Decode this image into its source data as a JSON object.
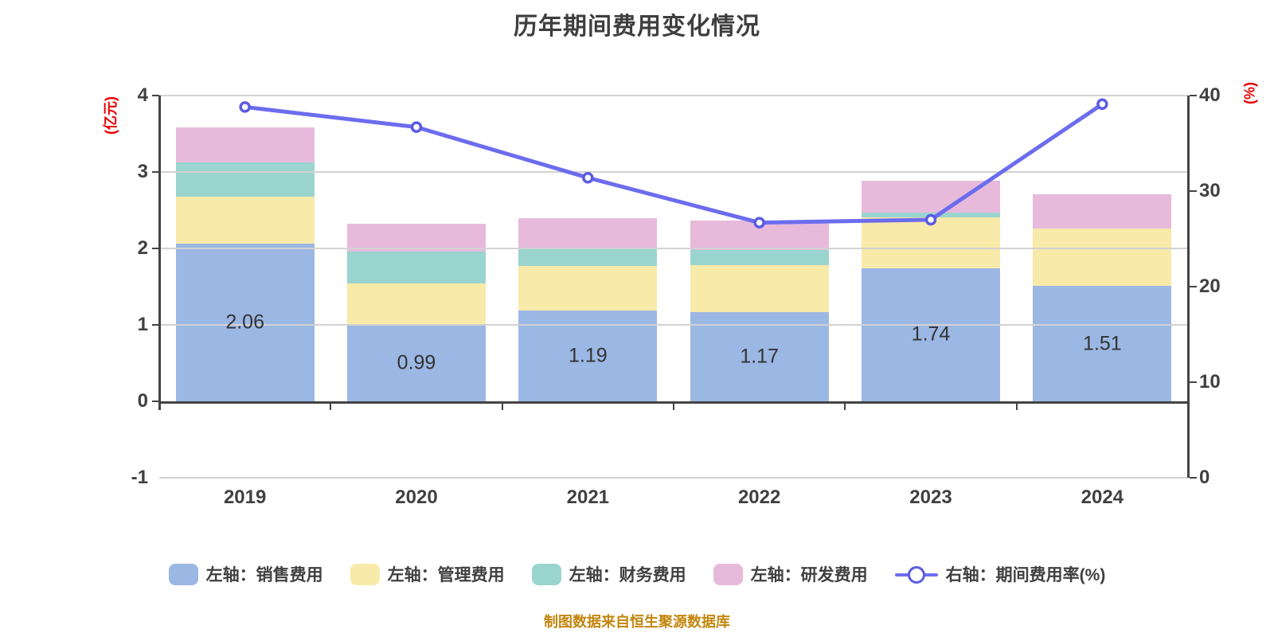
{
  "title": "历年期间费用变化情况",
  "footer": "制图数据来自恒生聚源数据库",
  "colors": {
    "sales": "#9BB7E3",
    "admin": "#F8EAA9",
    "finance": "#9AD4CE",
    "rd": "#E7BADC",
    "line": "#6C6CEF",
    "line_marker_stroke": "#5B5BE2",
    "line_marker_fill": "#FFFFFF",
    "axis_name": "#E60202",
    "footer_text": "#C2860E"
  },
  "left_axis": {
    "name": "(亿元)",
    "min": -1,
    "max": 4,
    "ticks": [
      4,
      3,
      2,
      1,
      0,
      -1
    ]
  },
  "right_axis": {
    "name": "(%)",
    "min": 0,
    "max": 40,
    "ticks": [
      40,
      30,
      20,
      10,
      0
    ]
  },
  "legend": [
    {
      "id": "sales",
      "label": "左轴：销售费用",
      "type": "bar",
      "color_key": "sales"
    },
    {
      "id": "admin",
      "label": "左轴：管理费用",
      "type": "bar",
      "color_key": "admin"
    },
    {
      "id": "finance",
      "label": "左轴：财务费用",
      "type": "bar",
      "color_key": "finance"
    },
    {
      "id": "rd",
      "label": "左轴：研发费用",
      "type": "bar",
      "color_key": "rd"
    },
    {
      "id": "rate",
      "label": "右轴：期间费用率(%)",
      "type": "line",
      "color_key": "line"
    }
  ],
  "chart_data": {
    "type": "bar+line",
    "title": "历年期间费用变化情况",
    "categories": [
      "2019",
      "2020",
      "2021",
      "2022",
      "2023",
      "2024"
    ],
    "left_ylim": [
      -1,
      4
    ],
    "right_ylim": [
      0,
      40
    ],
    "ylabel_left": "(亿元)",
    "ylabel_right": "(%)",
    "grid": true,
    "legend_position": "bottom",
    "series": [
      {
        "id": "sales",
        "name": "左轴：销售费用",
        "type": "bar",
        "stack": true,
        "axis": "left",
        "values": [
          2.06,
          0.99,
          1.19,
          1.17,
          1.74,
          1.51
        ],
        "data_labels": [
          "2.06",
          "0.99",
          "1.19",
          "1.17",
          "1.74",
          "1.51"
        ]
      },
      {
        "id": "admin",
        "name": "左轴：管理费用",
        "type": "bar",
        "stack": true,
        "axis": "left",
        "values": [
          0.62,
          0.55,
          0.58,
          0.61,
          0.67,
          0.75
        ],
        "data_labels": null
      },
      {
        "id": "finance",
        "name": "左轴：财务费用",
        "type": "bar",
        "stack": true,
        "axis": "left",
        "values": [
          0.45,
          0.42,
          0.23,
          0.2,
          0.06,
          0.0
        ],
        "data_labels": null
      },
      {
        "id": "rd",
        "name": "左轴：研发费用",
        "type": "bar",
        "stack": true,
        "axis": "left",
        "values": [
          0.45,
          0.36,
          0.4,
          0.38,
          0.42,
          0.45
        ],
        "data_labels": null
      },
      {
        "id": "rate",
        "name": "右轴：期间费用率(%)",
        "type": "line",
        "axis": "right",
        "values": [
          38.8,
          36.7,
          31.4,
          26.7,
          27.0,
          39.1
        ],
        "data_labels": null
      }
    ]
  }
}
